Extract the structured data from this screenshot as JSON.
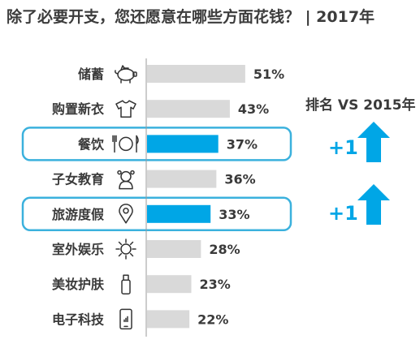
{
  "title": "除了必要开支，您还愿意在哪些方面花钱？ | 2017年",
  "chart_data": {
    "type": "bar",
    "orientation": "horizontal",
    "categories": [
      "储蓄",
      "购置新衣",
      "餐饮",
      "子女教育",
      "旅游度假",
      "室外娱乐",
      "美妆护肤",
      "电子科技"
    ],
    "values": [
      51,
      43,
      37,
      36,
      33,
      28,
      23,
      22
    ],
    "value_labels": [
      "51%",
      "43%",
      "37%",
      "36%",
      "33%",
      "28%",
      "23%",
      "22%"
    ],
    "icons": [
      "piggy-bank-icon",
      "tshirt-icon",
      "cutlery-icon",
      "child-icon",
      "map-pin-icon",
      "sun-icon",
      "lotion-bottle-icon",
      "phone-icon"
    ],
    "highlighted": [
      "餐饮",
      "旅游度假"
    ],
    "colors": {
      "bar": "#d9d9d9",
      "highlight": "#00a6e6",
      "outline": "#3bb1dd",
      "text": "#3a3a3a"
    }
  },
  "ranking": {
    "title": "排名 VS 2015年",
    "changes": [
      {
        "category": "餐饮",
        "label": "+1"
      },
      {
        "category": "旅游度假",
        "label": "+1"
      }
    ]
  }
}
